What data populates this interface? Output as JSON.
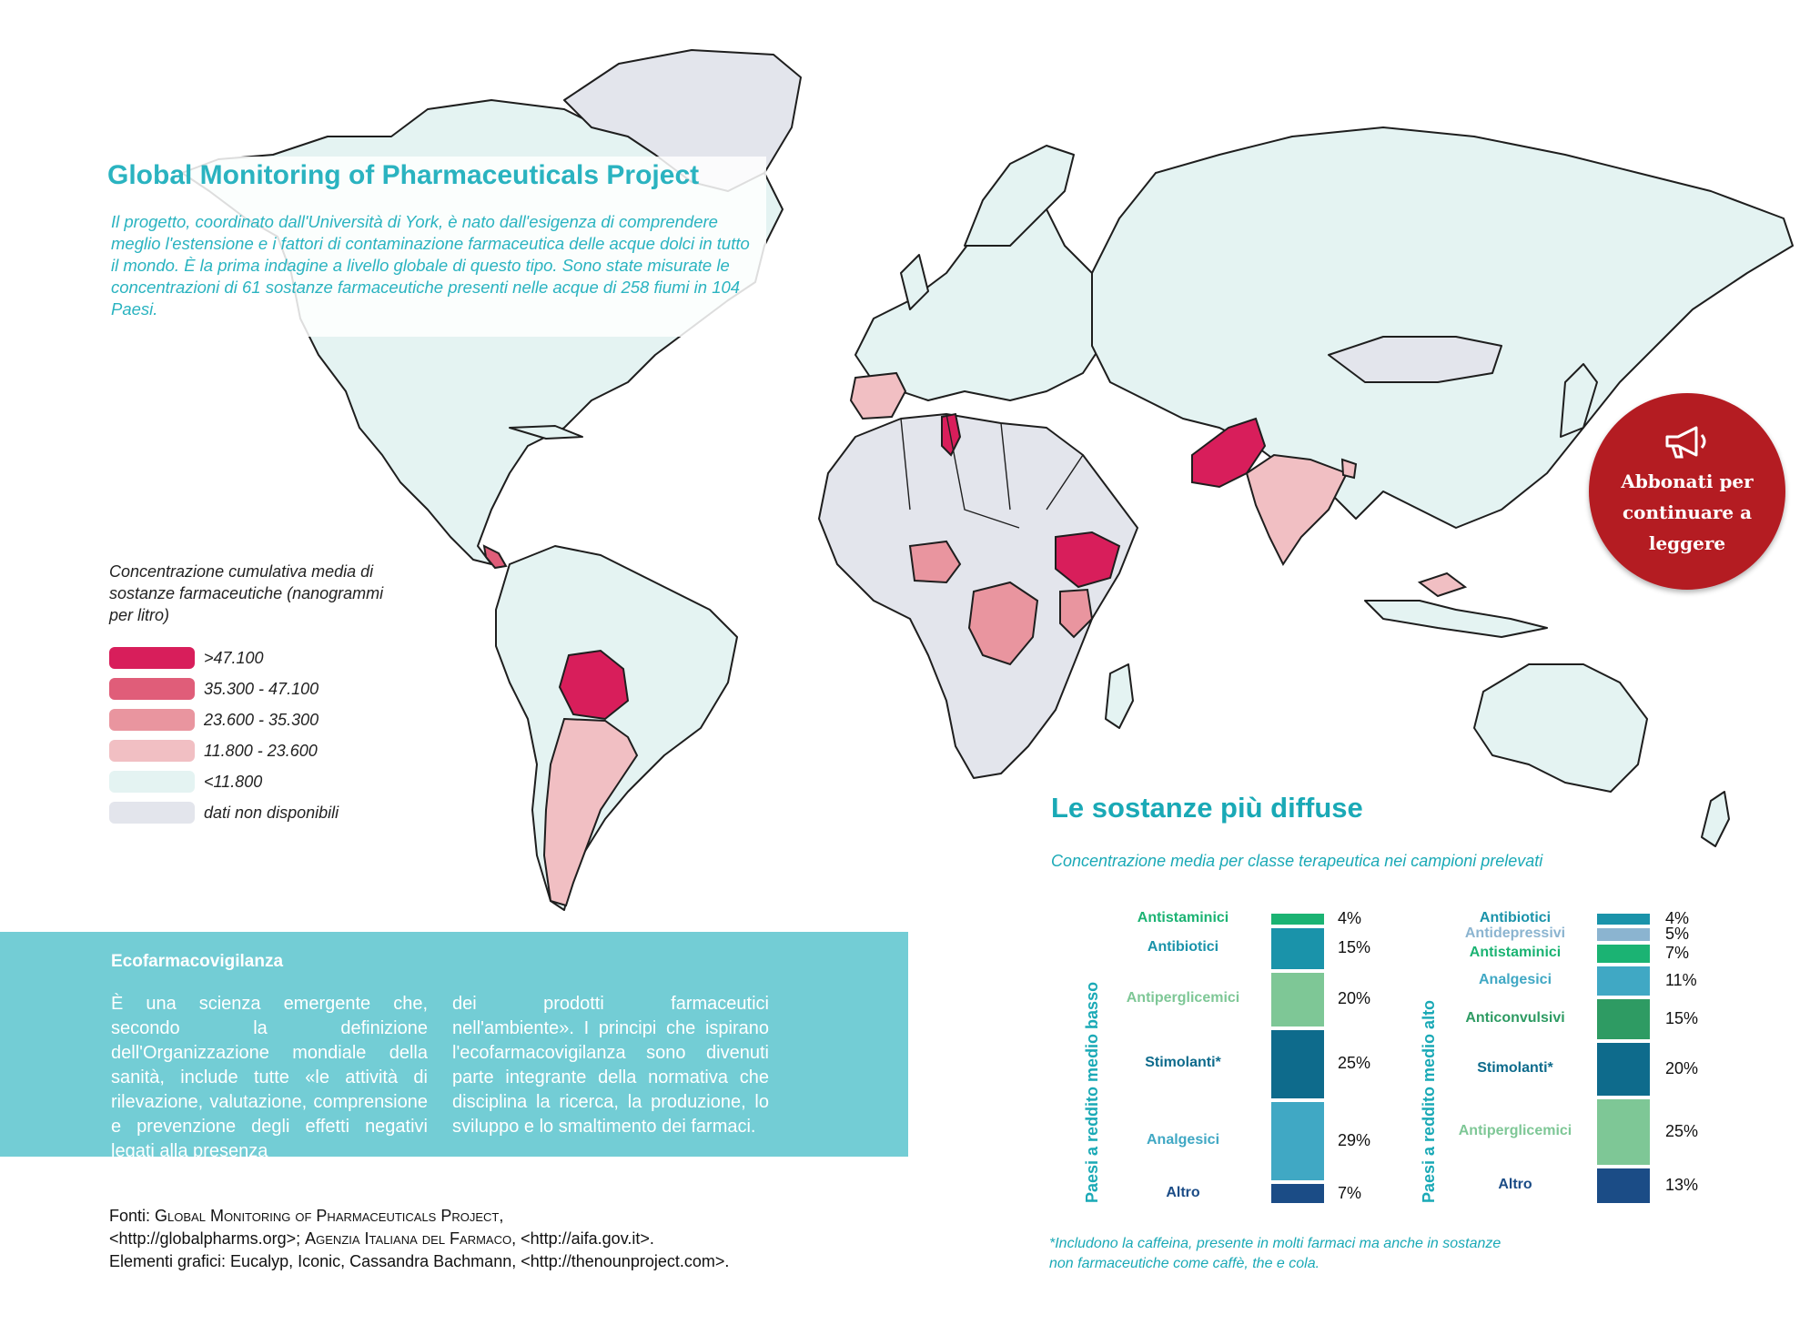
{
  "header": {
    "title": "Global Monitoring of Pharmaceuticals Project",
    "intro": "Il progetto, coordinato dall'Università di York, è nato dall'esigenza di comprendere meglio l'estensione e i fattori di contaminazione farmaceutica delle acque dolci in tutto il mondo. È la prima indagine a livello globale di questo tipo. Sono state misurate le concentrazioni di 61 sostanze farmaceutiche presenti nelle acque di 258 fiumi in 104 Paesi."
  },
  "legend": {
    "title": "Concentrazione cumulativa media di sostanze farmaceutiche (nanogrammi per litro)",
    "items": [
      {
        "label": ">47.100",
        "color": "#d81e5b"
      },
      {
        "label": "35.300 - 47.100",
        "color": "#e05d79"
      },
      {
        "label": "23.600 - 35.300",
        "color": "#e9959f"
      },
      {
        "label": "11.800 - 23.600",
        "color": "#f1bfc3"
      },
      {
        "label": "<11.800",
        "color": "#e4f3f2"
      },
      {
        "label": "dati non disponibili",
        "color": "#e3e5ec"
      }
    ]
  },
  "map": {
    "categories": {
      "gt_47100": [
        "Bolivia",
        "Pakistan",
        "Ethiopia",
        "Tunisia"
      ],
      "35300_47100": [
        "Costa Rica"
      ],
      "23600_35300": [
        "Democratic Republic of the Congo",
        "Kenya",
        "Nigeria"
      ],
      "11800_23600": [
        "Spain",
        "Argentina",
        "India",
        "Bangladesh",
        "Malaysia"
      ],
      "no_data_examples": [
        "Greenland",
        "Mongolia",
        "Sahara region"
      ]
    }
  },
  "cta": {
    "label": "Abbonati per continuare a leggere",
    "icon": "megaphone-icon",
    "color": "#b41c22"
  },
  "eco": {
    "title": "Ecofarmacovigilanza",
    "col1": "È una scienza emergente che, secondo la definizione dell'Organizzazione mondiale della sanità, include tutte «le attività di rilevazione, valutazione, comprensione e prevenzione degli effetti negativi legati alla presenza",
    "col2": "dei prodotti farmaceutici nell'ambiente». I principi che ispirano l'ecofarmacovigilanza sono divenuti parte integrante della normativa che disciplina la ricerca, la produzione, lo sviluppo e lo smaltimento dei farmaci."
  },
  "sources": {
    "prefix": "Fonti: ",
    "gmp": "Global Monitoring of Pharmaceuticals Project,",
    "gmp_url": "<http://globalpharms.org>; ",
    "aifa": "Agenzia Italiana del Farmaco",
    "aifa_url": ", <http://aifa.gov.it>.",
    "graphics": "Elementi grafici: Eucalyp, Iconic, Cassandra Bachmann, <http://thenounproject.com>."
  },
  "substances": {
    "title": "Le sostanze più diffuse",
    "subtitle": "Concentrazione media per classe terapeutica nei campioni prelevati",
    "footnote": "*Includono la caffeina, presente in molti farmaci ma anche in sostanze non farmaceutiche come caffè, the e cola."
  },
  "chart_data": [
    {
      "type": "bar",
      "stacked": true,
      "title": "Paesi a reddito medio basso",
      "categories": [
        "Antistaminici",
        "Antibiotici",
        "Antiperglicemici",
        "Stimolanti*",
        "Analgesici",
        "Altro"
      ],
      "values": [
        4,
        15,
        20,
        25,
        29,
        7
      ],
      "labels": [
        "4%",
        "15%",
        "20%",
        "25%",
        "29%",
        "7%"
      ],
      "colors": [
        "#1bb373",
        "#1a93aa",
        "#7ec796",
        "#0e6b8c",
        "#40a8c4",
        "#1b4c86"
      ]
    },
    {
      "type": "bar",
      "stacked": true,
      "title": "Paesi a reddito medio alto",
      "categories": [
        "Antibiotici",
        "Antidepressivi",
        "Antistaminici",
        "Analgesici",
        "Anticonvulsivi",
        "Stimolanti*",
        "Antiperglicemici",
        "Altro"
      ],
      "values": [
        4,
        5,
        7,
        11,
        15,
        20,
        25,
        13
      ],
      "labels": [
        "4%",
        "5%",
        "7%",
        "11%",
        "15%",
        "20%",
        "25%",
        "13%"
      ],
      "colors": [
        "#1a93aa",
        "#8bb4d0",
        "#1bb373",
        "#40a8c4",
        "#2e9b63",
        "#0e6b8c",
        "#7ec796",
        "#1b4c86"
      ]
    }
  ]
}
